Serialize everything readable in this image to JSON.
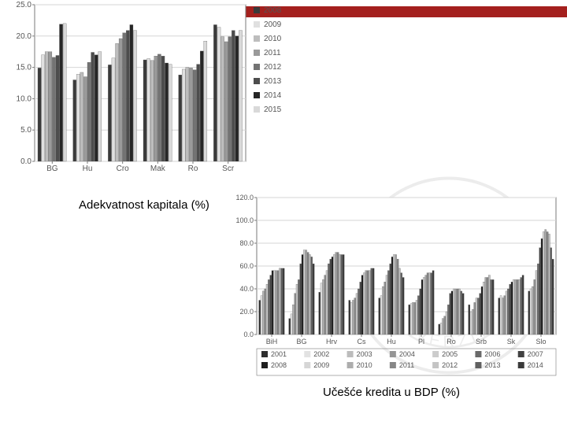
{
  "red_bar_color": "#a4201e",
  "caption1": "Adekvatnost kapitala (%)",
  "caption2": "Učešće kredita u BDP (%)",
  "watermark_text": "UNIVERZITET",
  "chart1": {
    "type": "bar",
    "categories": [
      "BG",
      "Hu",
      "Cro",
      "Mak",
      "Ro",
      "Scr"
    ],
    "series": [
      {
        "name": "2008",
        "color": "#3a3a3a",
        "values": [
          14.9,
          13.0,
          15.4,
          16.2,
          13.8,
          21.8
        ]
      },
      {
        "name": "2009",
        "color": "#e0e0e0",
        "values": [
          17.0,
          13.9,
          16.5,
          16.4,
          14.7,
          21.4
        ]
      },
      {
        "name": "2010",
        "color": "#bdbdbd",
        "values": [
          17.5,
          14.2,
          18.8,
          16.1,
          15.0,
          19.9
        ]
      },
      {
        "name": "2011",
        "color": "#9a9a9a",
        "values": [
          17.5,
          13.5,
          19.6,
          16.8,
          14.9,
          19.1
        ]
      },
      {
        "name": "2012",
        "color": "#737373",
        "values": [
          16.6,
          15.8,
          20.5,
          17.1,
          14.6,
          19.9
        ]
      },
      {
        "name": "2013",
        "color": "#4d4d4d",
        "values": [
          16.9,
          17.4,
          20.9,
          16.8,
          15.5,
          20.9
        ]
      },
      {
        "name": "2014",
        "color": "#262626",
        "values": [
          21.9,
          17.0,
          21.8,
          15.7,
          17.6,
          20.0
        ]
      },
      {
        "name": "2015",
        "color": "#d9d9d9",
        "values": [
          22.0,
          17.5,
          20.9,
          15.5,
          19.2,
          20.9
        ]
      }
    ],
    "title": "",
    "ylim": [
      0,
      25
    ],
    "ytick_step": 5,
    "axis_color": "#7a7a7a",
    "grid_color": "#d6d6d6",
    "label_fontsize": 10,
    "legend_fontsize": 10,
    "plot_bg": "#ffffff",
    "bar_group_gap": 0.18,
    "bar_gap": 0.01
  },
  "chart2": {
    "type": "bar",
    "categories": [
      "BiH",
      "BG",
      "Hrv",
      "Cs",
      "Hu",
      "Pl",
      "Ro",
      "Srb",
      "Sk",
      "Slo"
    ],
    "series": [
      {
        "name": "2001",
        "color": "#2e2e2e",
        "values": [
          30,
          14,
          37,
          30,
          32,
          26,
          9,
          26,
          32,
          38
        ]
      },
      {
        "name": "2002",
        "color": "#e2e2e2",
        "values": [
          34,
          18,
          45,
          28,
          34,
          27,
          10,
          20,
          34,
          40
        ]
      },
      {
        "name": "2003",
        "color": "#bcbcbc",
        "values": [
          38,
          26,
          48,
          30,
          42,
          28,
          14,
          22,
          32,
          42
        ]
      },
      {
        "name": "2004",
        "color": "#959595",
        "values": [
          40,
          36,
          52,
          32,
          46,
          28,
          16,
          28,
          34,
          48
        ]
      },
      {
        "name": "2005",
        "color": "#cccccc",
        "values": [
          44,
          44,
          56,
          36,
          52,
          30,
          20,
          32,
          38,
          56
        ]
      },
      {
        "name": "2006",
        "color": "#6a6a6a",
        "values": [
          48,
          48,
          62,
          40,
          56,
          34,
          26,
          32,
          40,
          62
        ]
      },
      {
        "name": "2007",
        "color": "#414141",
        "values": [
          52,
          62,
          66,
          46,
          62,
          40,
          36,
          36,
          44,
          76
        ]
      },
      {
        "name": "2008",
        "color": "#1f1f1f",
        "values": [
          56,
          70,
          68,
          52,
          68,
          48,
          38,
          42,
          46,
          84
        ]
      },
      {
        "name": "2009",
        "color": "#d6d6d6",
        "values": [
          56,
          74,
          70,
          54,
          70,
          50,
          40,
          46,
          48,
          90
        ]
      },
      {
        "name": "2010",
        "color": "#adadad",
        "values": [
          56,
          74,
          72,
          56,
          70,
          52,
          40,
          50,
          48,
          92
        ]
      },
      {
        "name": "2011",
        "color": "#878787",
        "values": [
          56,
          72,
          72,
          56,
          66,
          54,
          40,
          50,
          48,
          90
        ]
      },
      {
        "name": "2012",
        "color": "#c4c4c4",
        "values": [
          58,
          70,
          70,
          56,
          58,
          54,
          40,
          52,
          48,
          88
        ]
      },
      {
        "name": "2013",
        "color": "#606060",
        "values": [
          58,
          68,
          70,
          58,
          54,
          54,
          38,
          48,
          50,
          76
        ]
      },
      {
        "name": "2014",
        "color": "#3a3a3a",
        "values": [
          58,
          62,
          70,
          58,
          50,
          56,
          36,
          48,
          52,
          66
        ]
      }
    ],
    "title": "",
    "ylim": [
      0,
      120
    ],
    "ytick_step": 20,
    "axis_color": "#7a7a7a",
    "grid_color": "#d6d6d6",
    "label_fontsize": 9,
    "legend_fontsize": 9,
    "plot_bg": "#ffffff",
    "bar_group_gap": 0.14,
    "bar_gap": 0.005
  }
}
